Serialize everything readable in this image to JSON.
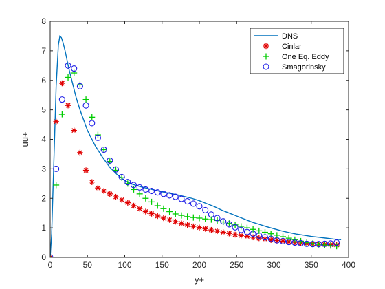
{
  "chart_data": {
    "type": "line",
    "title": "",
    "xlabel": "y+",
    "ylabel": "uu+",
    "xlim": [
      0,
      400
    ],
    "ylim": [
      0,
      8
    ],
    "xticks": [
      0,
      50,
      100,
      150,
      200,
      250,
      300,
      350,
      400
    ],
    "yticks": [
      0,
      1,
      2,
      3,
      4,
      5,
      6,
      7,
      8
    ],
    "grid": false,
    "legend_position": "top-right",
    "series": [
      {
        "name": "DNS",
        "style": "line",
        "color": "#0072BD",
        "x": [
          0,
          2,
          5,
          8,
          11,
          13,
          15,
          17,
          20,
          25,
          30,
          35,
          40,
          50,
          60,
          70,
          80,
          90,
          100,
          110,
          120,
          130,
          140,
          150,
          160,
          170,
          180,
          190,
          200,
          210,
          220,
          230,
          240,
          250,
          260,
          270,
          280,
          290,
          300,
          310,
          320,
          330,
          340,
          350,
          360,
          370,
          380,
          390
        ],
        "y": [
          0,
          0.8,
          3.3,
          5.8,
          7.2,
          7.5,
          7.45,
          7.3,
          7.0,
          6.4,
          5.9,
          5.4,
          5.0,
          4.3,
          3.8,
          3.4,
          3.05,
          2.8,
          2.6,
          2.48,
          2.4,
          2.34,
          2.28,
          2.22,
          2.17,
          2.12,
          2.06,
          2.0,
          1.92,
          1.82,
          1.72,
          1.6,
          1.5,
          1.4,
          1.3,
          1.2,
          1.12,
          1.04,
          0.97,
          0.9,
          0.84,
          0.79,
          0.75,
          0.71,
          0.68,
          0.65,
          0.62,
          0.6
        ]
      },
      {
        "name": "Cinlar",
        "style": "asterisk",
        "color": "#e00000",
        "x": [
          0,
          8,
          16,
          24,
          32,
          40,
          48,
          56,
          64,
          72,
          80,
          88,
          96,
          104,
          112,
          120,
          128,
          136,
          144,
          152,
          160,
          168,
          176,
          184,
          192,
          200,
          208,
          216,
          224,
          232,
          240,
          248,
          256,
          264,
          272,
          280,
          288,
          296,
          304,
          312,
          320,
          328,
          336,
          344,
          352,
          360,
          368,
          376,
          384
        ],
        "y": [
          0,
          4.6,
          5.9,
          5.15,
          4.3,
          3.55,
          2.95,
          2.55,
          2.35,
          2.25,
          2.15,
          2.05,
          1.95,
          1.85,
          1.75,
          1.65,
          1.55,
          1.48,
          1.4,
          1.33,
          1.27,
          1.21,
          1.15,
          1.1,
          1.05,
          1.01,
          0.97,
          0.93,
          0.89,
          0.85,
          0.81,
          0.77,
          0.74,
          0.71,
          0.68,
          0.65,
          0.62,
          0.59,
          0.57,
          0.55,
          0.53,
          0.51,
          0.49,
          0.47,
          0.46,
          0.45,
          0.44,
          0.43,
          0.42
        ]
      },
      {
        "name": "One Eq. Eddy",
        "style": "plus",
        "color": "#00cc00",
        "x": [
          0,
          8,
          16,
          24,
          32,
          40,
          48,
          56,
          64,
          72,
          80,
          88,
          96,
          104,
          112,
          120,
          128,
          136,
          144,
          152,
          160,
          168,
          176,
          184,
          192,
          200,
          208,
          216,
          224,
          232,
          240,
          248,
          256,
          264,
          272,
          280,
          288,
          296,
          304,
          312,
          320,
          328,
          336,
          344,
          352,
          360,
          368,
          376,
          384
        ],
        "y": [
          0,
          2.45,
          4.85,
          6.1,
          6.25,
          5.85,
          5.35,
          4.75,
          4.15,
          3.65,
          3.25,
          2.95,
          2.7,
          2.5,
          2.3,
          2.15,
          2.0,
          1.88,
          1.75,
          1.65,
          1.55,
          1.47,
          1.42,
          1.38,
          1.35,
          1.33,
          1.3,
          1.28,
          1.25,
          1.2,
          1.15,
          1.1,
          1.05,
          1.0,
          0.95,
          0.9,
          0.85,
          0.8,
          0.75,
          0.7,
          0.65,
          0.6,
          0.55,
          0.5,
          0.47,
          0.44,
          0.42,
          0.4,
          0.38
        ]
      },
      {
        "name": "Smagorinsky",
        "style": "circle",
        "color": "#1a1ae6",
        "x": [
          0,
          8,
          16,
          24,
          32,
          40,
          48,
          56,
          64,
          72,
          80,
          88,
          96,
          104,
          112,
          120,
          128,
          136,
          144,
          152,
          160,
          168,
          176,
          184,
          192,
          200,
          208,
          216,
          224,
          232,
          240,
          248,
          256,
          264,
          272,
          280,
          288,
          296,
          304,
          312,
          320,
          328,
          336,
          344,
          352,
          360,
          368,
          376,
          384
        ],
        "y": [
          0,
          3.0,
          5.35,
          6.5,
          6.4,
          5.8,
          5.15,
          4.55,
          4.05,
          3.65,
          3.28,
          2.98,
          2.72,
          2.55,
          2.45,
          2.37,
          2.3,
          2.25,
          2.2,
          2.15,
          2.1,
          2.05,
          1.98,
          1.9,
          1.82,
          1.73,
          1.6,
          1.45,
          1.33,
          1.22,
          1.12,
          1.02,
          0.93,
          0.86,
          0.8,
          0.74,
          0.68,
          0.63,
          0.58,
          0.55,
          0.52,
          0.5,
          0.48,
          0.46,
          0.45,
          0.45,
          0.46,
          0.47,
          0.5
        ]
      }
    ]
  }
}
